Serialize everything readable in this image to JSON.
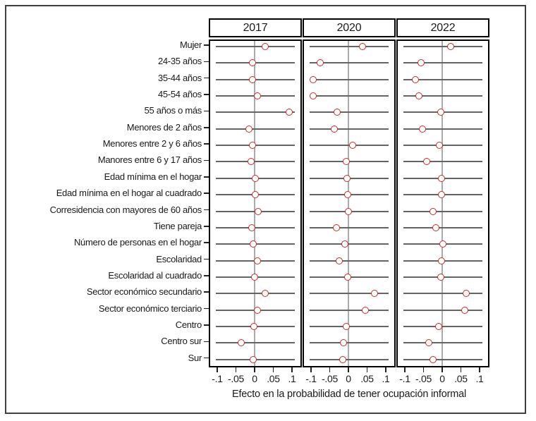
{
  "chart_data": {
    "type": "scatter",
    "subtype": "coefficient-dot-plot",
    "xlabel": "Efecto en la probabilidad de tener ocupación informal",
    "xlim": [
      -0.1,
      0.1
    ],
    "x_tick_labels": [
      "-.1",
      "-.05",
      "0",
      ".05",
      ".1"
    ],
    "x_tick_values": [
      -0.1,
      -0.05,
      0,
      0.05,
      0.1
    ],
    "grid": "horizontal-row-lines",
    "legend_position": "none",
    "marker_color": "#c92b26",
    "row_line_color": "#646464",
    "zero_line_color": "#ababab",
    "border_color": "#000000",
    "categories": [
      "Mujer",
      "24-35 años",
      "35-44 años",
      "45-54 años",
      "55 años o más",
      "Menores de 2 años",
      "Menores entre 2 y 6 años",
      "Manores entre 6 y 17 años",
      "Edad mínima en el hogar",
      "Edad mínima en el hogar al cuadrado",
      "Corresidencia con mayores de 60 años",
      "Tiene pareja",
      "Número de personas en el hogar",
      "Escolaridad",
      "Escolaridad al cuadrado",
      "Sector económico secundario",
      "Sector económico terciario",
      "Centro",
      "Centro sur",
      "Sur"
    ],
    "panels": [
      {
        "title": "2017",
        "values": [
          0.028,
          -0.006,
          -0.005,
          0.008,
          0.092,
          -0.015,
          -0.006,
          -0.009,
          0.001,
          0.001,
          0.01,
          -0.008,
          -0.004,
          0.007,
          0.0,
          0.028,
          0.008,
          -0.002,
          -0.035,
          -0.003
        ]
      },
      {
        "title": "2020",
        "values": [
          0.037,
          -0.075,
          -0.095,
          -0.095,
          -0.03,
          -0.038,
          0.012,
          -0.005,
          -0.003,
          -0.002,
          0.0,
          -0.032,
          -0.01,
          -0.024,
          -0.001,
          0.07,
          0.046,
          -0.005,
          -0.013,
          -0.015
        ]
      },
      {
        "title": "2022",
        "values": [
          0.022,
          -0.057,
          -0.071,
          -0.062,
          -0.003,
          -0.053,
          -0.007,
          -0.041,
          -0.002,
          -0.001,
          -0.025,
          -0.017,
          0.002,
          -0.001,
          -0.004,
          0.064,
          0.06,
          -0.009,
          -0.036,
          -0.025
        ]
      }
    ]
  }
}
